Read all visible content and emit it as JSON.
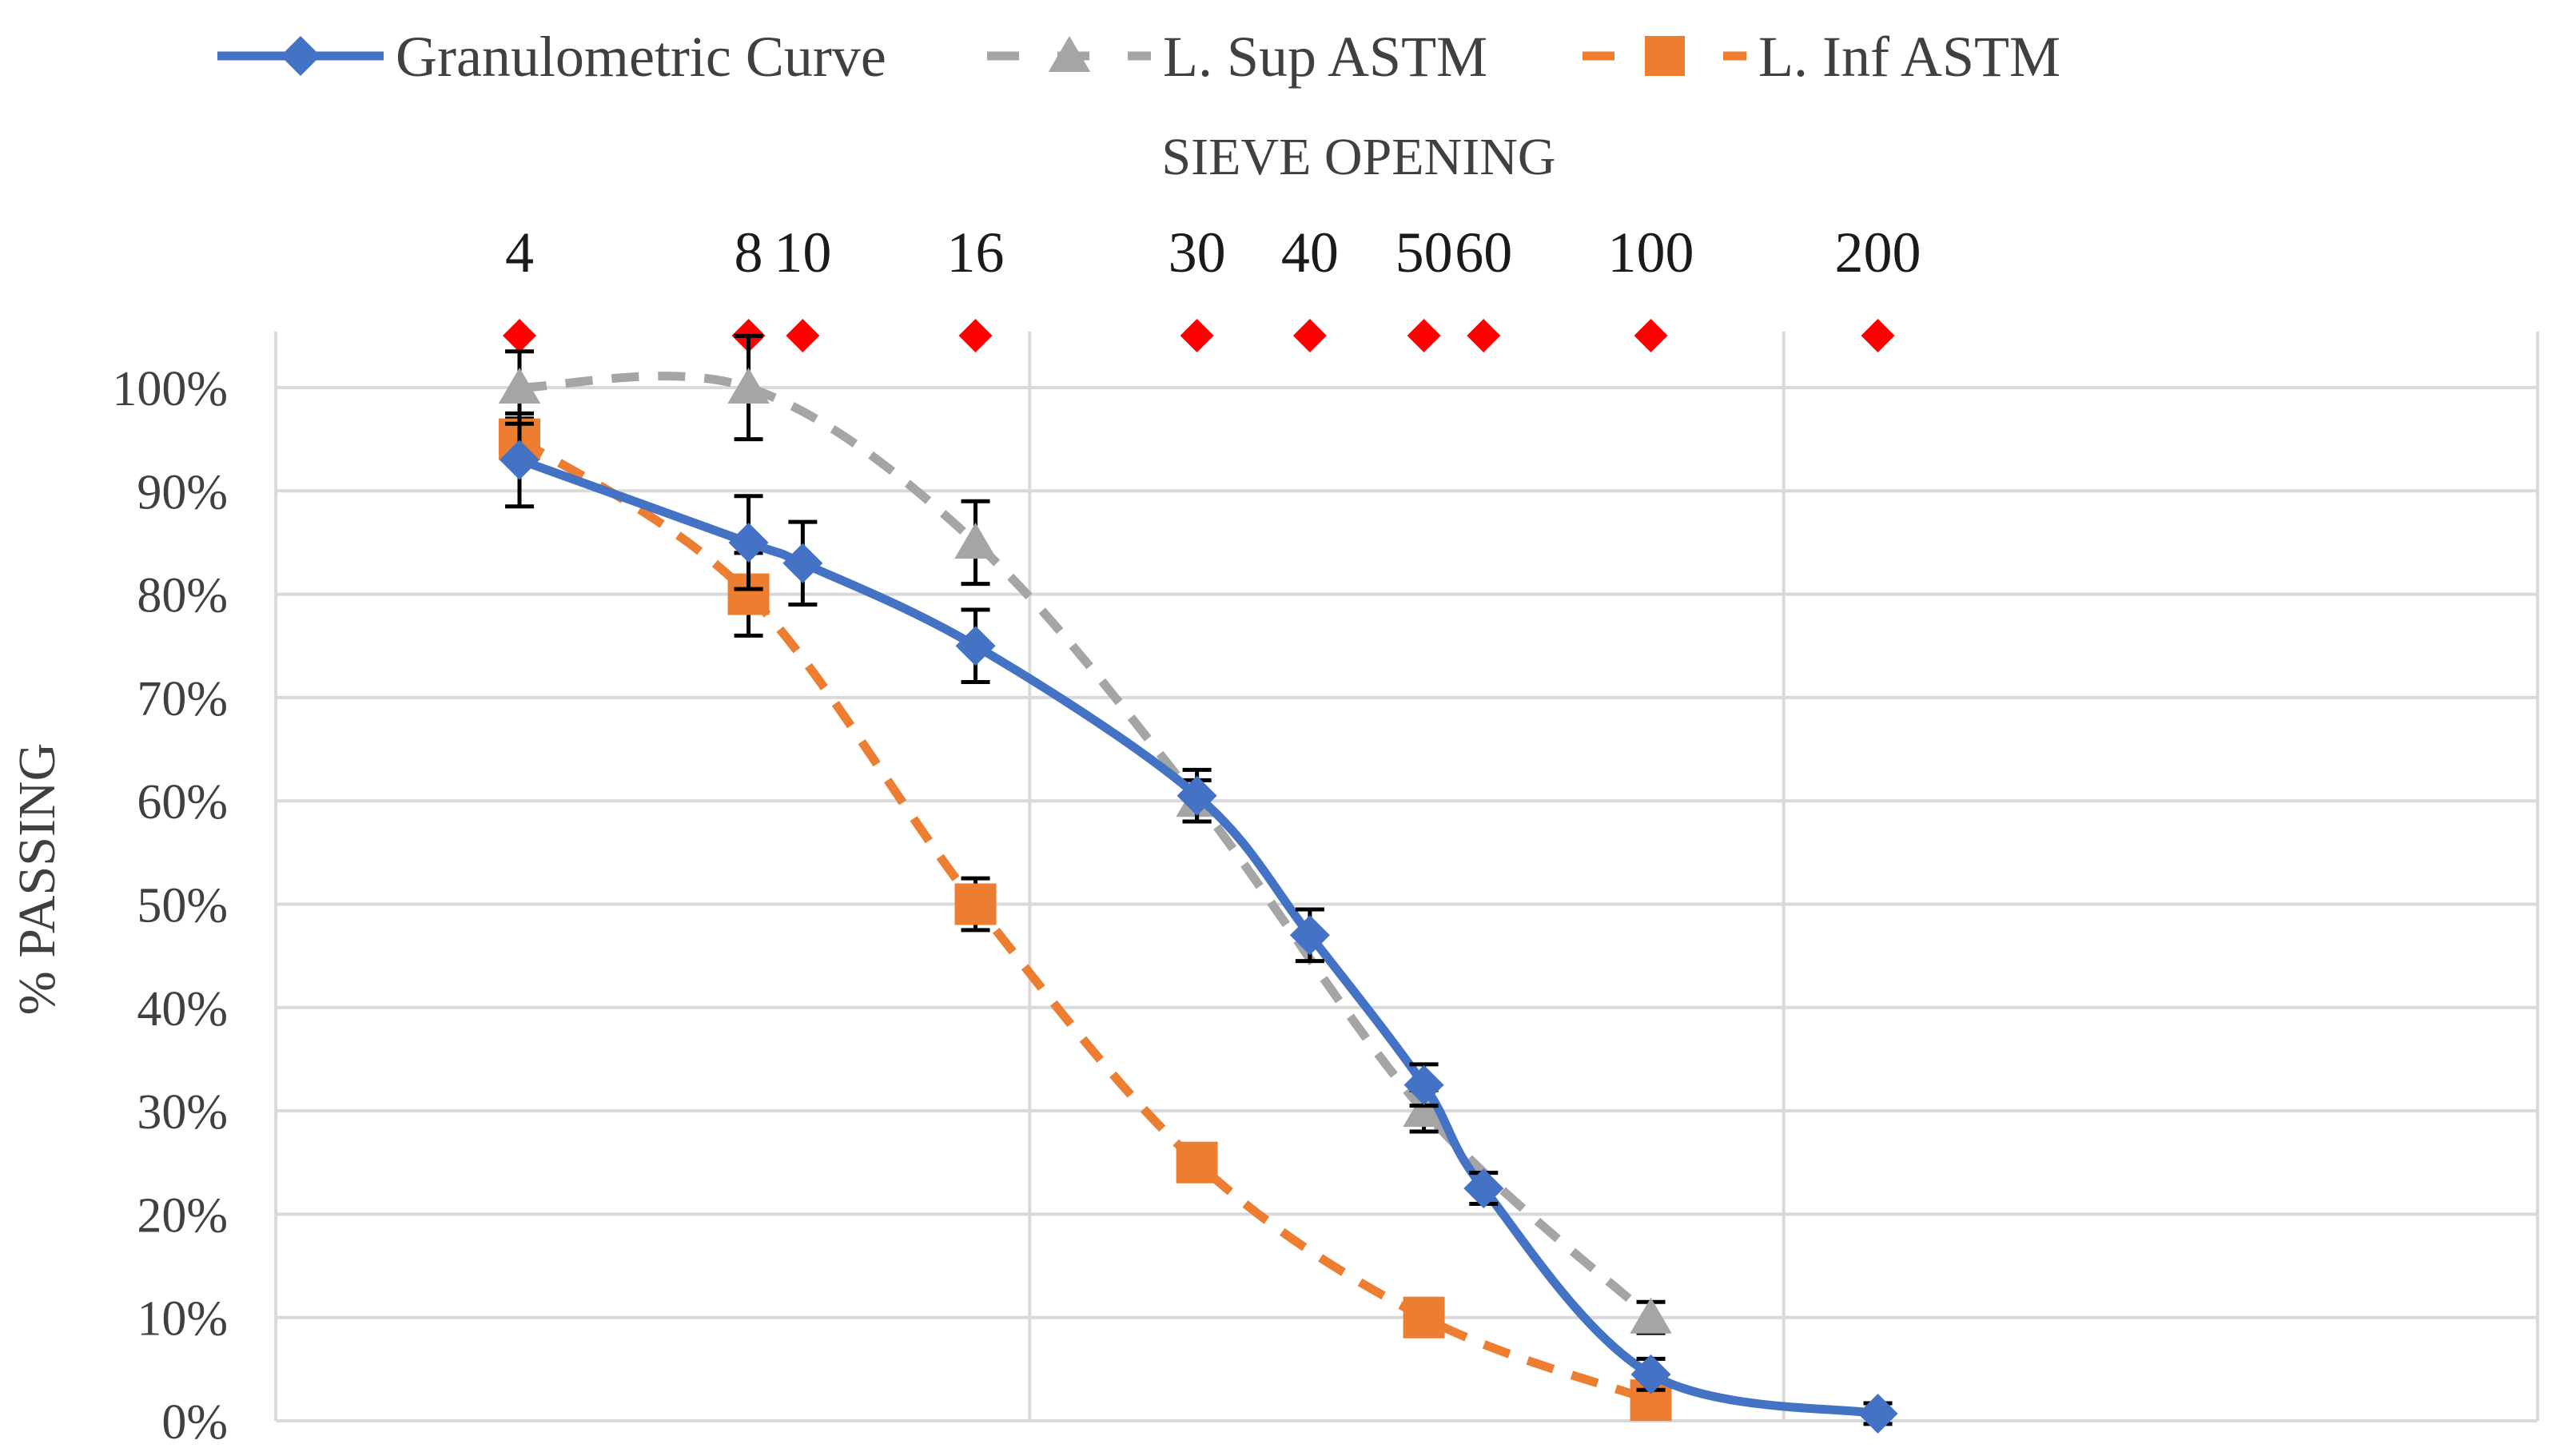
{
  "chart_data": {
    "type": "line",
    "title": "",
    "xlabel": "SIEVE OPENING",
    "ylabel": "% PASSING",
    "ylim": [
      0,
      100
    ],
    "yticks": [
      0,
      10,
      20,
      30,
      40,
      50,
      60,
      70,
      80,
      90,
      100
    ],
    "ytick_labels": [
      "0%",
      "10%",
      "20%",
      "30%",
      "40%",
      "50%",
      "60%",
      "70%",
      "80%",
      "90%",
      "100%"
    ],
    "x_scale": "log",
    "x_range_mm": [
      0.01,
      10
    ],
    "legend_position": "top",
    "grid": true,
    "sieves": [
      {
        "label": "4",
        "size_mm": 4.75
      },
      {
        "label": "8",
        "size_mm": 2.36
      },
      {
        "label": "10",
        "size_mm": 2.0
      },
      {
        "label": "16",
        "size_mm": 1.18
      },
      {
        "label": "30",
        "size_mm": 0.6
      },
      {
        "label": "40",
        "size_mm": 0.425
      },
      {
        "label": "50",
        "size_mm": 0.3
      },
      {
        "label": "60",
        "size_mm": 0.25
      },
      {
        "label": "100",
        "size_mm": 0.15
      },
      {
        "label": "200",
        "size_mm": 0.075
      }
    ],
    "sieve_marker_color": "#ff0000",
    "series": [
      {
        "name": "Granulometric Curve",
        "color": "#4472c4",
        "style": "solid",
        "marker": "diamond",
        "x": [
          4.75,
          2.36,
          2.0,
          1.18,
          0.6,
          0.425,
          0.3,
          0.25,
          0.15,
          0.075
        ],
        "values": [
          93,
          85,
          83,
          75,
          60.5,
          47,
          32.5,
          22.5,
          4.5,
          0.7
        ],
        "error": [
          4.5,
          4.5,
          4,
          3.5,
          2.5,
          2.5,
          2,
          1.5,
          1.5,
          1
        ]
      },
      {
        "name": "L. Sup ASTM",
        "color": "#a5a5a5",
        "style": "dashed",
        "marker": "triangle",
        "x": [
          4.75,
          2.36,
          1.18,
          0.6,
          0.3,
          0.15
        ],
        "values": [
          100,
          100,
          85,
          60,
          30,
          10
        ],
        "error": [
          3.5,
          5,
          4,
          2,
          2,
          1.5
        ]
      },
      {
        "name": "L. Inf ASTM",
        "color": "#ed7d31",
        "style": "dashed",
        "marker": "square",
        "x": [
          4.75,
          2.36,
          1.18,
          0.6,
          0.3,
          0.15
        ],
        "values": [
          95,
          80,
          50,
          25,
          10,
          2
        ],
        "error": [
          2,
          4,
          2.5,
          1,
          1,
          1
        ]
      }
    ]
  }
}
